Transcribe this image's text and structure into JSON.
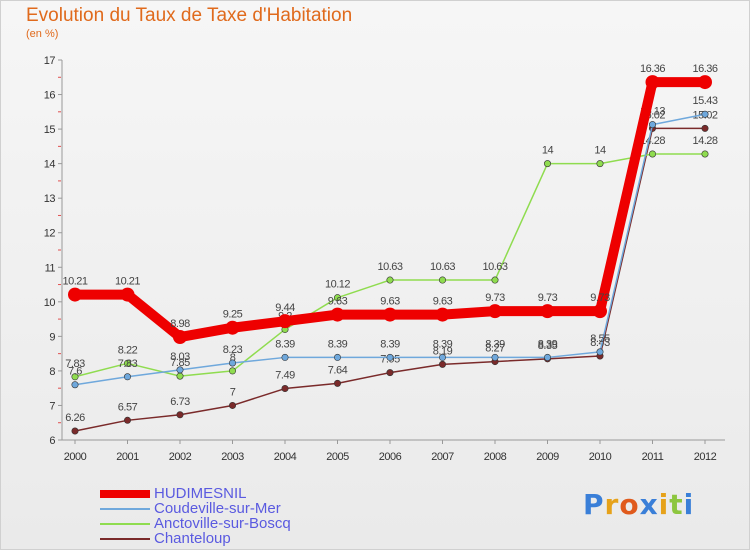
{
  "chart_data": {
    "type": "line",
    "title": "Evolution du Taux de Taxe d'Habitation",
    "subtitle": "(en %)",
    "x": [
      "2000",
      "2001",
      "2002",
      "2003",
      "2004",
      "2005",
      "2006",
      "2007",
      "2008",
      "2009",
      "2010",
      "2011",
      "2012"
    ],
    "ylim": [
      6,
      17
    ],
    "yticks": [
      "6",
      "7",
      "8",
      "9",
      "10",
      "11",
      "12",
      "13",
      "14",
      "15",
      "16",
      "17"
    ],
    "grid": false,
    "legend_position": "bottom-left",
    "series": [
      {
        "name": "HUDIMESNIL",
        "color": "#ee0000",
        "values": [
          10.21,
          10.21,
          8.98,
          9.25,
          9.44,
          9.63,
          9.63,
          9.63,
          9.73,
          9.73,
          9.73,
          16.36,
          16.36
        ],
        "labels": [
          "10.21",
          "10.21",
          "8.98",
          "9.25",
          "9.44",
          "9.63",
          "9.63",
          "9.63",
          "9.73",
          "9.73",
          "9.73",
          "16.36",
          "16.36"
        ]
      },
      {
        "name": "Coudeville-sur-Mer",
        "color": "#6fa8dc",
        "values": [
          7.6,
          7.83,
          8.03,
          8.23,
          8.39,
          8.39,
          8.39,
          8.39,
          8.39,
          8.39,
          8.55,
          15.13,
          15.43
        ],
        "labels": [
          "7.6",
          "7.83",
          "8.03",
          "8.23",
          "8.39",
          "8.39",
          "8.39",
          "8.39",
          "8.39",
          "8.39",
          "8.55",
          "15.13",
          "15.43"
        ]
      },
      {
        "name": "Anctoville-sur-Boscq",
        "color": "#8fdc4f",
        "values": [
          7.83,
          8.22,
          7.85,
          8.0,
          9.2,
          10.12,
          10.63,
          10.63,
          10.63,
          14,
          14,
          14.28,
          14.28
        ],
        "labels": [
          "7.83",
          "8.22",
          "7.85",
          "8",
          "9.2",
          "10.12",
          "10.63",
          "10.63",
          "10.63",
          "14",
          "14",
          "14.28",
          "14.28"
        ]
      },
      {
        "name": "Chanteloup",
        "color": "#7a2a2a",
        "values": [
          6.26,
          6.57,
          6.73,
          7,
          7.49,
          7.64,
          7.95,
          8.19,
          8.27,
          8.35,
          8.43,
          15.02,
          15.02
        ],
        "labels": [
          "6.26",
          "6.57",
          "6.73",
          "7",
          "7.49",
          "7.64",
          "7.95",
          "8.19",
          "8.27",
          "8.35",
          "8.43",
          "15.02",
          "15.02"
        ]
      }
    ]
  },
  "brand": {
    "letters": [
      {
        "ch": "P",
        "color": "#3a7fd8"
      },
      {
        "ch": "r",
        "color": "#e6a21a"
      },
      {
        "ch": "o",
        "color": "#e05a1c"
      },
      {
        "ch": "x",
        "color": "#3a7fd8"
      },
      {
        "ch": "i",
        "color": "#e6a21a"
      },
      {
        "ch": "t",
        "color": "#8dc63f"
      },
      {
        "ch": "i",
        "color": "#3a7fd8"
      }
    ]
  }
}
